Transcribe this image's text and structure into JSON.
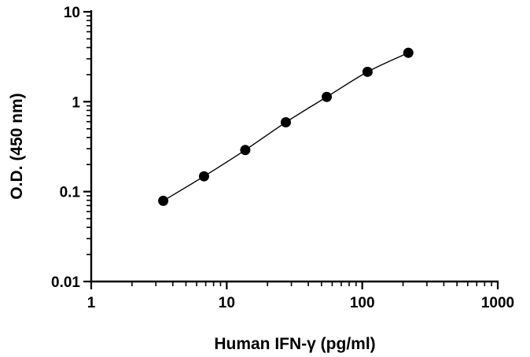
{
  "chart_data": {
    "type": "scatter",
    "title": "",
    "xlabel": "Human IFN-γ (pg/ml)",
    "ylabel": "O.D. (450 nm)",
    "xscale": "log",
    "yscale": "log",
    "xlim": [
      1,
      1000
    ],
    "ylim": [
      0.01,
      10
    ],
    "grid": false,
    "legend": "none",
    "x_ticks": [
      "1",
      "10",
      "100",
      "1000"
    ],
    "y_ticks": [
      "0.01",
      "0.1",
      "1",
      "10"
    ],
    "fit_line": "smooth curve through points",
    "series": [
      {
        "x": [
          3.4,
          6.8,
          13.7,
          27.3,
          54.7,
          109.4,
          218.8
        ],
        "y": [
          0.079,
          0.148,
          0.29,
          0.59,
          1.13,
          2.15,
          3.5
        ],
        "color": "#000000"
      }
    ]
  }
}
